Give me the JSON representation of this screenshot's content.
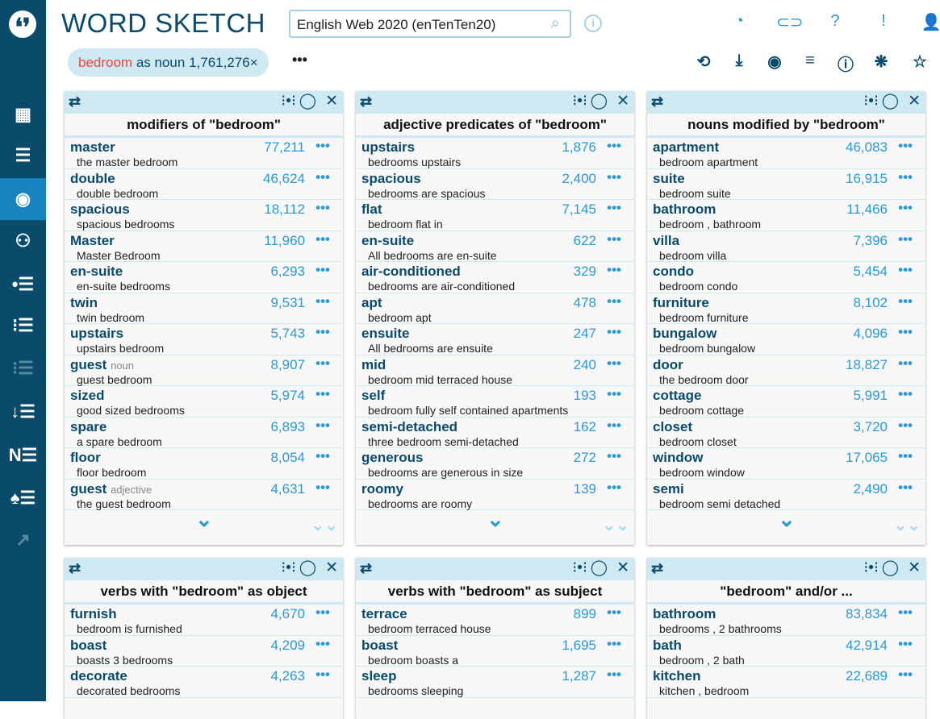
{
  "app": {
    "title": "WORD SKETCH",
    "corpus": "English Web 2020 (enTenTen20)"
  },
  "query": {
    "word": "bedroom",
    "rest": "as noun 1,761,276×",
    "more": "•••"
  },
  "colors": {
    "sidebar": "#0a4b6b",
    "accent": "#2a9ad6",
    "highlight": "#e8483d",
    "panel": "#cfe9f3"
  },
  "sidebar_icons": [
    "dashboard-icon",
    "concordance-icon",
    "word-sketch-icon",
    "thesaurus-icon",
    "wordlist-icon",
    "word-sketch-difference-icon",
    "ngrams-icon",
    "keywords-icon",
    "ner-icon",
    "parallel-icon",
    "trends-icon"
  ],
  "top_icons": [
    "corpus-info-icon",
    "link-icon",
    "help-icon",
    "feedback-icon",
    "user-icon"
  ],
  "toolbar_icons": [
    "change-search-icon",
    "download-icon",
    "view-icon",
    "filter-icon",
    "info-icon",
    "visualize-icon",
    "favourite-icon"
  ],
  "cards": [
    {
      "title": "modifiers of \"bedroom\"",
      "items": [
        {
          "w": "master",
          "e": "the master bedroom",
          "f": "77,211"
        },
        {
          "w": "double",
          "e": "double bedroom",
          "f": "46,624"
        },
        {
          "w": "spacious",
          "e": "spacious bedrooms",
          "f": "18,112"
        },
        {
          "w": "Master",
          "e": "Master Bedroom",
          "f": "11,960"
        },
        {
          "w": "en-suite",
          "e": "en-suite bedrooms",
          "f": "6,293"
        },
        {
          "w": "twin",
          "e": "twin bedroom",
          "f": "9,531"
        },
        {
          "w": "upstairs",
          "e": "upstairs bedroom",
          "f": "5,743"
        },
        {
          "w": "guest",
          "p": "noun",
          "e": "guest bedroom",
          "f": "8,907"
        },
        {
          "w": "sized",
          "e": "good sized bedrooms",
          "f": "5,974"
        },
        {
          "w": "spare",
          "e": "a spare bedroom",
          "f": "6,893"
        },
        {
          "w": "floor",
          "e": "floor bedroom",
          "f": "8,054"
        },
        {
          "w": "guest",
          "p": "adjective",
          "e": "the guest bedroom",
          "f": "4,631"
        }
      ]
    },
    {
      "title": "adjective predicates of \"bedroom\"",
      "items": [
        {
          "w": "upstairs",
          "e": "bedrooms upstairs",
          "f": "1,876"
        },
        {
          "w": "spacious",
          "e": "bedrooms are spacious",
          "f": "2,400"
        },
        {
          "w": "flat",
          "e": "bedroom flat in",
          "f": "7,145"
        },
        {
          "w": "en-suite",
          "e": "All bedrooms are en-suite",
          "f": "622"
        },
        {
          "w": "air-conditioned",
          "e": "bedrooms are air-conditioned",
          "f": "329"
        },
        {
          "w": "apt",
          "e": "bedroom apt",
          "f": "478"
        },
        {
          "w": "ensuite",
          "e": "All bedrooms are ensuite",
          "f": "247"
        },
        {
          "w": "mid",
          "e": "bedroom mid terraced house",
          "f": "240"
        },
        {
          "w": "self",
          "e": "bedroom fully self contained apartments",
          "f": "193"
        },
        {
          "w": "semi-detached",
          "e": "three bedroom semi-detached",
          "f": "162"
        },
        {
          "w": "generous",
          "e": "bedrooms are generous in size",
          "f": "272"
        },
        {
          "w": "roomy",
          "e": "bedrooms are roomy",
          "f": "139"
        }
      ]
    },
    {
      "title": "nouns modified by \"bedroom\"",
      "items": [
        {
          "w": "apartment",
          "e": "bedroom apartment",
          "f": "46,083"
        },
        {
          "w": "suite",
          "e": "bedroom suite",
          "f": "16,915"
        },
        {
          "w": "bathroom",
          "e": "bedroom , bathroom",
          "f": "11,466"
        },
        {
          "w": "villa",
          "e": "bedroom villa",
          "f": "7,396"
        },
        {
          "w": "condo",
          "e": "bedroom condo",
          "f": "5,454"
        },
        {
          "w": "furniture",
          "e": "bedroom furniture",
          "f": "8,102"
        },
        {
          "w": "bungalow",
          "e": "bedroom bungalow",
          "f": "4,096"
        },
        {
          "w": "door",
          "e": "the bedroom door",
          "f": "18,827"
        },
        {
          "w": "cottage",
          "e": "bedroom cottage",
          "f": "5,991"
        },
        {
          "w": "closet",
          "e": "bedroom closet",
          "f": "3,720"
        },
        {
          "w": "window",
          "e": "bedroom window",
          "f": "17,065"
        },
        {
          "w": "semi",
          "e": "bedroom semi detached",
          "f": "2,490"
        }
      ]
    },
    {
      "title": "verbs with \"bedroom\" as object",
      "items": [
        {
          "w": "furnish",
          "e": "bedroom is furnished",
          "f": "4,670"
        },
        {
          "w": "boast",
          "e": "boasts 3 bedrooms",
          "f": "4,209"
        },
        {
          "w": "decorate",
          "e": "decorated bedrooms",
          "f": "4,263"
        }
      ]
    },
    {
      "title": "verbs with \"bedroom\" as subject",
      "items": [
        {
          "w": "terrace",
          "e": "bedroom terraced house",
          "f": "899"
        },
        {
          "w": "boast",
          "e": "bedroom boasts a",
          "f": "1,695"
        },
        {
          "w": "sleep",
          "e": "bedrooms sleeping",
          "f": "1,287"
        }
      ]
    },
    {
      "title": "\"bedroom\" and/or ...",
      "items": [
        {
          "w": "bathroom",
          "e": "bedrooms , 2 bathrooms",
          "f": "83,834"
        },
        {
          "w": "bath",
          "e": "bedroom , 2 bath",
          "f": "42,914"
        },
        {
          "w": "kitchen",
          "e": "kitchen , bedroom",
          "f": "22,689"
        }
      ]
    }
  ]
}
